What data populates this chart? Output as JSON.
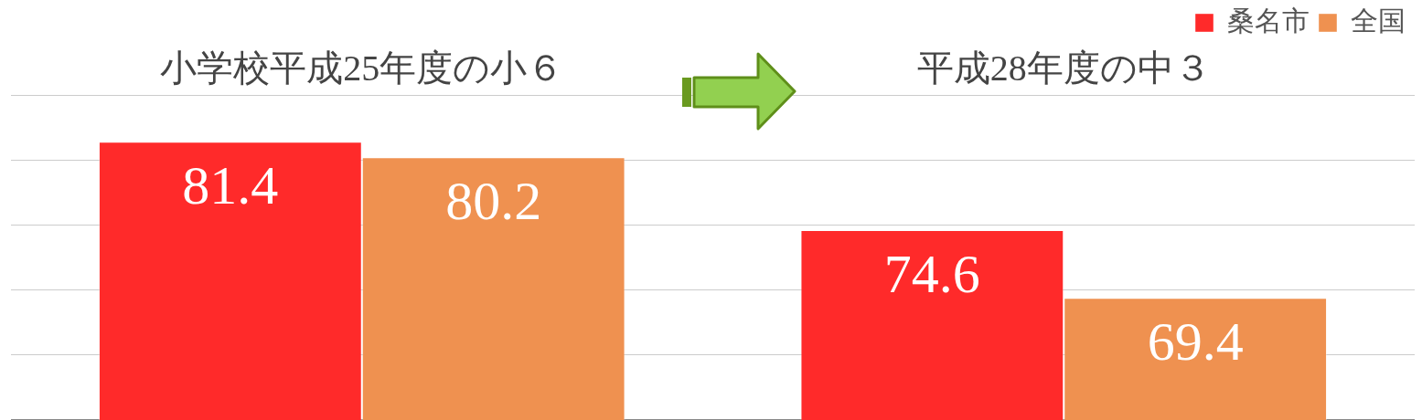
{
  "chart_data": {
    "type": "bar",
    "categories": [
      "小学校平成25年度の小６",
      "平成28年度の中３"
    ],
    "series": [
      {
        "name": "桑名市",
        "color": "#ff2a2a",
        "values": [
          81.4,
          74.6
        ]
      },
      {
        "name": "全国",
        "color": "#ef9150",
        "values": [
          80.2,
          69.4
        ]
      }
    ],
    "ylim": [
      60,
      85
    ],
    "yticks": [
      {
        "value": 60,
        "label": null
      },
      {
        "value": 65,
        "label": null
      },
      {
        "value": 70,
        "label": null
      },
      {
        "value": 75,
        "label": null
      },
      {
        "value": 80,
        "label": null
      },
      {
        "value": 85,
        "label": null
      }
    ],
    "grid": "y",
    "legend": "top right",
    "tick_labels": "x",
    "data_labels": true
  }
}
